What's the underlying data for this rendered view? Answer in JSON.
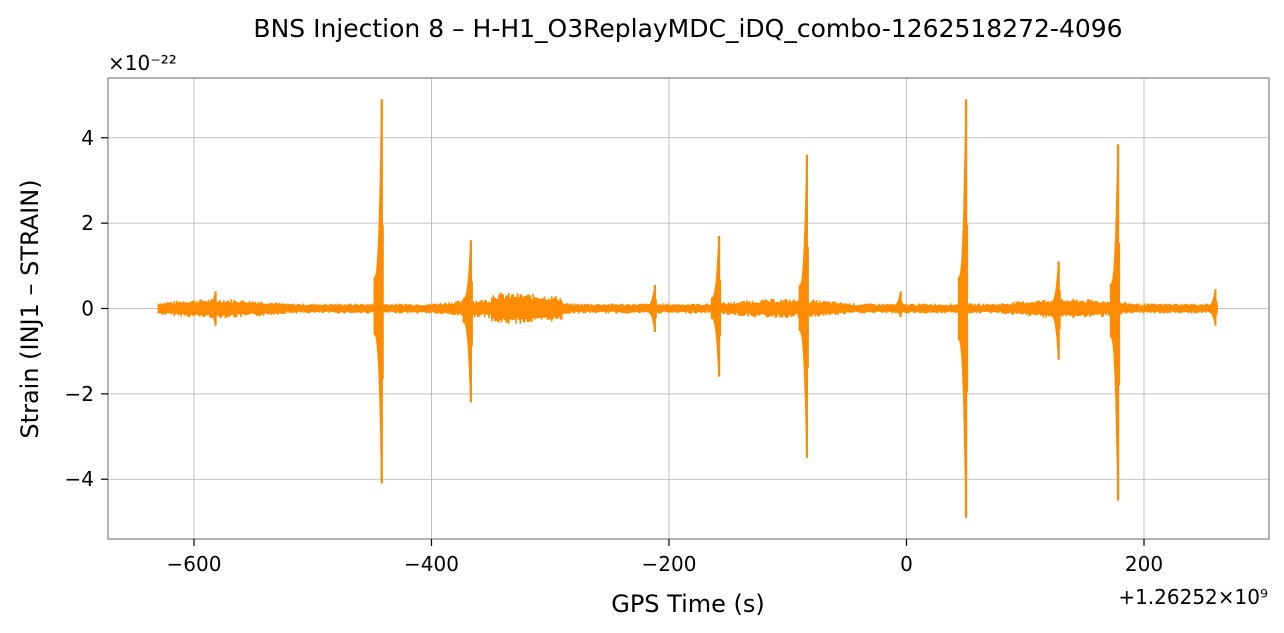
{
  "chart_data": {
    "type": "line",
    "title": "BNS Injection 8 – H-H1_O3ReplayMDC_iDQ_combo-1262518272-4096",
    "xlabel": "GPS Time (s)",
    "ylabel": "Strain (INJ1 – STRAIN)",
    "x_offset_text": "+1.26252×10⁹",
    "y_scale_text": "×10⁻²²",
    "xlim": [
      -680,
      1330
    ],
    "ylim": [
      -5.4,
      5.4
    ],
    "grid": true,
    "x_ticks": [
      -600,
      -400,
      -200,
      0,
      200
    ],
    "x_tick_labels": [
      "−600",
      "−400",
      "−200",
      "0",
      "200"
    ],
    "y_ticks": [
      -4,
      -2,
      0,
      2,
      4
    ],
    "y_tick_labels": [
      "−4",
      "−2",
      "0",
      "2",
      "4"
    ],
    "series": [
      {
        "color": "#ff8c00",
        "x_range": [
          -630,
          262
        ],
        "baseline_amplitude": 0.12,
        "bursts": [
          {
            "t": -582,
            "peak": 0.4,
            "trough": -0.4
          },
          {
            "t": -442,
            "peak": 4.9,
            "trough": -4.1
          },
          {
            "t": -367,
            "peak": 1.6,
            "trough": -2.2
          },
          {
            "t": -212,
            "peak": 0.55,
            "trough": -0.55
          },
          {
            "t": -158,
            "peak": 1.7,
            "trough": -1.6
          },
          {
            "t": -84,
            "peak": 3.6,
            "trough": -3.5
          },
          {
            "t": -5,
            "peak": 0.4,
            "trough": -0.2
          },
          {
            "t": 50,
            "peak": 4.9,
            "trough": -4.9
          },
          {
            "t": 128,
            "peak": 1.1,
            "trough": -1.2
          },
          {
            "t": 178,
            "peak": 3.85,
            "trough": -4.5
          },
          {
            "t": 260,
            "peak": 0.45,
            "trough": -0.4
          }
        ]
      }
    ]
  }
}
